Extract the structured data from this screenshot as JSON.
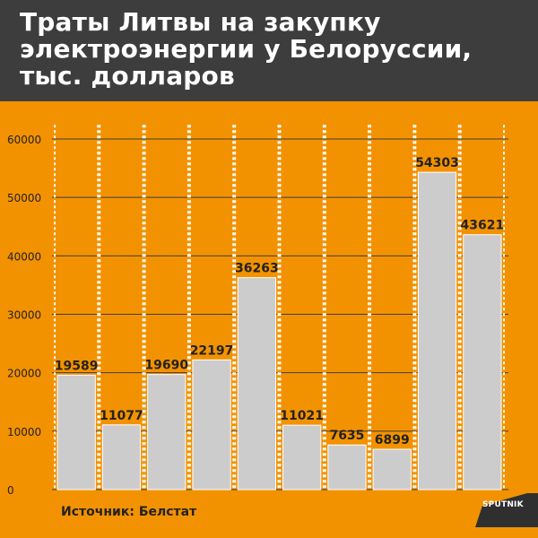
{
  "title": "Траты Литвы на закупку электроэнергии у Белоруссии, тыс. долларов",
  "source": "Источник: Белстат",
  "logo": "SPUTNIK",
  "colors": {
    "background": "#f39200",
    "header": "#3d3d3d",
    "bar": "#cccccc",
    "grid": "#3d3d3d",
    "dots": "#ffffff",
    "text": "#222222"
  },
  "chart_data": {
    "type": "bar",
    "title": "Траты Литвы на закупку электроэнергии у Белоруссии, тыс. долларов",
    "xlabel": "",
    "ylabel": "",
    "ylim": [
      0,
      60000
    ],
    "yticks": [
      0,
      10000,
      20000,
      30000,
      40000,
      50000,
      60000
    ],
    "grid": true,
    "values": [
      19589,
      11077,
      19690,
      22197,
      36263,
      11021,
      7635,
      6899,
      54303,
      43621
    ],
    "data_labels": [
      "19589",
      "11077",
      "19690",
      "22197",
      "36263",
      "11021",
      "7635",
      "6899",
      "54303",
      "43621"
    ]
  }
}
